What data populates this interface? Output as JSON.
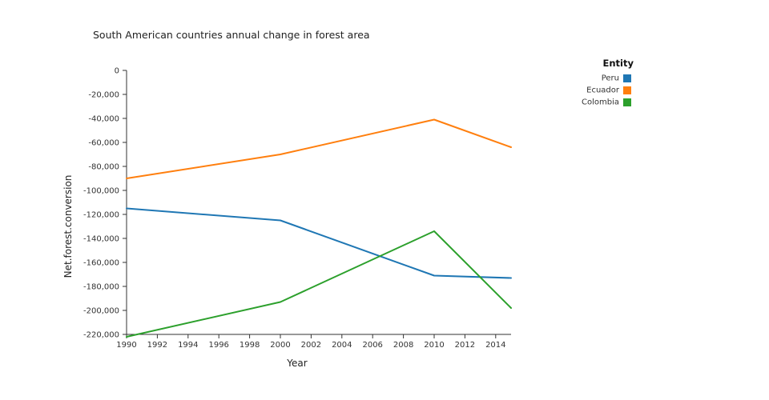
{
  "chart_data": {
    "type": "line",
    "title": "South American countries annual change in forest area",
    "xlabel": "Year",
    "ylabel": "Net.forest.conversion",
    "xlim": [
      1990,
      2015
    ],
    "ylim": [
      -220000,
      0
    ],
    "xticks": [
      1990,
      1992,
      1994,
      1996,
      1998,
      2000,
      2002,
      2004,
      2006,
      2008,
      2010,
      2012,
      2014
    ],
    "yticks": [
      0,
      -20000,
      -40000,
      -60000,
      -80000,
      -100000,
      -120000,
      -140000,
      -160000,
      -180000,
      -200000,
      -220000
    ],
    "grid": false,
    "legend": {
      "title": "Entity",
      "placement": "top-right"
    },
    "series": [
      {
        "name": "Peru",
        "color": "#1f77b4",
        "x": [
          1990,
          2000,
          2010,
          2015
        ],
        "y": [
          -115000,
          -125000,
          -171000,
          -173000
        ]
      },
      {
        "name": "Ecuador",
        "color": "#ff7f0e",
        "x": [
          1990,
          2000,
          2010,
          2015
        ],
        "y": [
          -90000,
          -70000,
          -41000,
          -64000
        ]
      },
      {
        "name": "Colombia",
        "color": "#2ca02c",
        "x": [
          1990,
          2000,
          2010,
          2015
        ],
        "y": [
          -222000,
          -193000,
          -134000,
          -198000
        ]
      }
    ]
  }
}
